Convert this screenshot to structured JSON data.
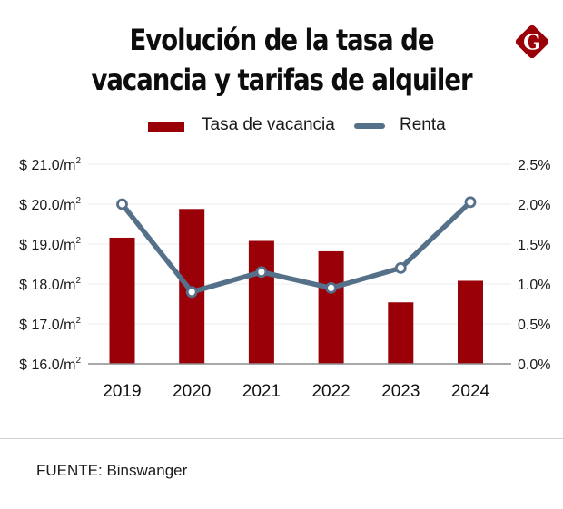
{
  "header": {
    "title_line1": "Evolución de la tasa de",
    "title_line2": "vacancia y tarifas de alquiler",
    "logo": "G",
    "logo_icon": "diamond-g-logo-icon"
  },
  "legend": {
    "bar_label": "Tasa de vacancia",
    "line_label": "Renta"
  },
  "colors": {
    "bar": "#9a0007",
    "line": "#557089",
    "grid": "#ececec",
    "axis": "#8c8c8c"
  },
  "chart_data": {
    "type": "bar",
    "title": "Evolución de la tasa de vacancia y tarifas de alquiler",
    "categories": [
      "2019",
      "2020",
      "2021",
      "2022",
      "2023",
      "2024"
    ],
    "series": [
      {
        "name": "Tasa de vacancia",
        "type": "bar",
        "axis": "right",
        "unit": "%",
        "values": [
          1.58,
          1.94,
          1.54,
          1.41,
          0.77,
          1.04
        ]
      },
      {
        "name": "Renta",
        "type": "line",
        "axis": "left",
        "unit": "$/m²",
        "values": [
          20.0,
          17.8,
          18.3,
          17.9,
          18.4,
          20.05
        ]
      }
    ],
    "left_axis": {
      "label": "",
      "range": [
        16.0,
        21.0
      ],
      "ticks": [
        16.0,
        17.0,
        18.0,
        19.0,
        20.0,
        21.0
      ],
      "tick_labels": [
        "$ 16.0/m²",
        "$ 17.0/m²",
        "$ 18.0/m²",
        "$ 19.0/m²",
        "$ 20.0/m²",
        "$ 21.0/m²"
      ]
    },
    "right_axis": {
      "label": "",
      "range": [
        0.0,
        2.5
      ],
      "ticks": [
        0.0,
        0.5,
        1.0,
        1.5,
        2.0,
        2.5
      ],
      "tick_labels": [
        "0.0%",
        "0.5%",
        "1.0%",
        "1.5%",
        "2.0%",
        "2.5%"
      ]
    },
    "xlabel": "",
    "grid": true,
    "legend_position": "top-center"
  },
  "footer": {
    "source": "FUENTE: Binswanger"
  }
}
